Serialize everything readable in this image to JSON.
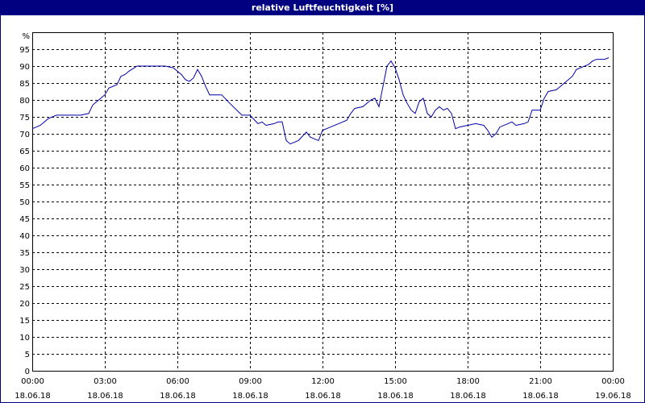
{
  "chart_data": {
    "type": "line",
    "title": "relative Luftfeuchtigkeit [%]",
    "ylabel": "%",
    "ylim": [
      0,
      100
    ],
    "y_ticks": [
      0,
      5,
      10,
      15,
      20,
      25,
      30,
      35,
      40,
      45,
      50,
      55,
      60,
      65,
      70,
      75,
      80,
      85,
      90,
      95
    ],
    "x_ticks": [
      {
        "time": "00:00",
        "date": "18.06.18"
      },
      {
        "time": "03:00",
        "date": "18.06.18"
      },
      {
        "time": "06:00",
        "date": "18.06.18"
      },
      {
        "time": "09:00",
        "date": "18.06.18"
      },
      {
        "time": "12:00",
        "date": "18.06.18"
      },
      {
        "time": "15:00",
        "date": "18.06.18"
      },
      {
        "time": "18:00",
        "date": "18.06.18"
      },
      {
        "time": "21:00",
        "date": "18.06.18"
      },
      {
        "time": "00:00",
        "date": "19.06.18"
      }
    ],
    "xlim": [
      "18.06.18 00:00",
      "19.06.18 00:00"
    ],
    "grid": true,
    "line_color": "#0000aa",
    "series": [
      {
        "points": [
          [
            "00:00",
            71.5
          ],
          [
            "00:20",
            72.5
          ],
          [
            "00:40",
            74.5
          ],
          [
            "01:00",
            75.5
          ],
          [
            "01:30",
            75.5
          ],
          [
            "02:00",
            75.5
          ],
          [
            "02:20",
            76
          ],
          [
            "02:30",
            78.5
          ],
          [
            "02:50",
            80.5
          ],
          [
            "03:00",
            81.5
          ],
          [
            "03:10",
            83.5
          ],
          [
            "03:30",
            84.5
          ],
          [
            "03:40",
            87
          ],
          [
            "03:50",
            87.5
          ],
          [
            "04:00",
            88.5
          ],
          [
            "04:20",
            90
          ],
          [
            "05:00",
            90
          ],
          [
            "05:30",
            90
          ],
          [
            "05:50",
            89.5
          ],
          [
            "06:10",
            87.5
          ],
          [
            "06:20",
            86
          ],
          [
            "06:30",
            85.5
          ],
          [
            "06:40",
            86.5
          ],
          [
            "06:50",
            89
          ],
          [
            "07:00",
            87
          ],
          [
            "07:10",
            84
          ],
          [
            "07:20",
            81.5
          ],
          [
            "07:50",
            81.5
          ],
          [
            "08:10",
            79
          ],
          [
            "08:40",
            75.5
          ],
          [
            "09:00",
            75.5
          ],
          [
            "09:20",
            73
          ],
          [
            "09:30",
            73.5
          ],
          [
            "09:40",
            72.5
          ],
          [
            "10:00",
            73
          ],
          [
            "10:10",
            73.5
          ],
          [
            "10:20",
            73.5
          ],
          [
            "10:30",
            68
          ],
          [
            "10:40",
            67
          ],
          [
            "11:00",
            68
          ],
          [
            "11:20",
            70.5
          ],
          [
            "11:30",
            69
          ],
          [
            "11:50",
            68
          ],
          [
            "12:00",
            71
          ],
          [
            "12:20",
            72
          ],
          [
            "12:40",
            73
          ],
          [
            "13:00",
            74
          ],
          [
            "13:10",
            76
          ],
          [
            "13:20",
            77.5
          ],
          [
            "13:40",
            78
          ],
          [
            "14:00",
            80
          ],
          [
            "14:10",
            80.5
          ],
          [
            "14:20",
            78
          ],
          [
            "14:30",
            84
          ],
          [
            "14:40",
            90
          ],
          [
            "14:50",
            91.5
          ],
          [
            "15:00",
            89.5
          ],
          [
            "15:10",
            86
          ],
          [
            "15:20",
            81.5
          ],
          [
            "15:30",
            79
          ],
          [
            "15:40",
            77
          ],
          [
            "15:50",
            76
          ],
          [
            "16:00",
            79.5
          ],
          [
            "16:10",
            80.5
          ],
          [
            "16:20",
            76
          ],
          [
            "16:30",
            75
          ],
          [
            "16:40",
            77
          ],
          [
            "16:50",
            78
          ],
          [
            "17:00",
            77
          ],
          [
            "17:10",
            77.5
          ],
          [
            "17:20",
            76
          ],
          [
            "17:30",
            71.5
          ],
          [
            "17:40",
            72
          ],
          [
            "18:00",
            72.5
          ],
          [
            "18:20",
            73
          ],
          [
            "18:40",
            72.5
          ],
          [
            "18:50",
            71
          ],
          [
            "19:00",
            69
          ],
          [
            "19:10",
            70
          ],
          [
            "19:20",
            72
          ],
          [
            "19:40",
            73
          ],
          [
            "19:50",
            73.5
          ],
          [
            "20:00",
            72.5
          ],
          [
            "20:20",
            73
          ],
          [
            "20:30",
            73.5
          ],
          [
            "20:40",
            77
          ],
          [
            "21:00",
            77
          ],
          [
            "21:10",
            80.5
          ],
          [
            "21:20",
            82.5
          ],
          [
            "21:40",
            83
          ],
          [
            "21:50",
            84
          ],
          [
            "22:00",
            85
          ],
          [
            "22:20",
            87
          ],
          [
            "22:30",
            89
          ],
          [
            "23:00",
            90.5
          ],
          [
            "23:10",
            91.5
          ],
          [
            "23:20",
            92
          ],
          [
            "23:40",
            92
          ],
          [
            "23:50",
            92.5
          ]
        ]
      }
    ]
  }
}
